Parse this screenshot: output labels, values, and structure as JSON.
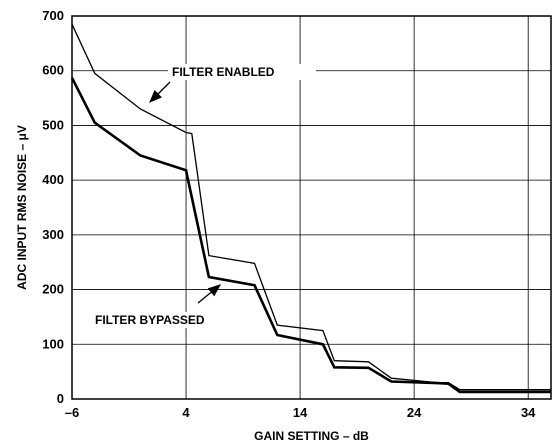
{
  "chart_data": {
    "type": "line",
    "title": "",
    "xlabel": "GAIN SETTING – dB",
    "ylabel": "ADC INPUT RMS NOISE – μV",
    "xlim": [
      -6,
      36
    ],
    "ylim": [
      0,
      700
    ],
    "x_ticks": [
      "–6",
      "4",
      "14",
      "24",
      "34"
    ],
    "x_tick_values": [
      -6,
      4,
      14,
      24,
      34
    ],
    "y_ticks": [
      "0",
      "100",
      "200",
      "300",
      "400",
      "500",
      "600",
      "700"
    ],
    "y_tick_values": [
      0,
      100,
      200,
      300,
      400,
      500,
      600,
      700
    ],
    "grid": true,
    "series": [
      {
        "name": "FILTER ENABLED",
        "stroke_width": "thin",
        "x": [
          -6,
          -4,
          0,
          4,
          4.5,
          6,
          10,
          12,
          16,
          17,
          20,
          22,
          26,
          27,
          28,
          36
        ],
        "y": [
          685,
          595,
          530,
          487,
          485,
          262,
          248,
          135,
          125,
          70,
          68,
          38,
          30,
          30,
          17,
          17
        ]
      },
      {
        "name": "FILTER BYPASSED",
        "stroke_width": "thick",
        "x": [
          -6,
          -4,
          0,
          4,
          6,
          10,
          12,
          16,
          17,
          20,
          22,
          26,
          27,
          28,
          36
        ],
        "y": [
          587,
          505,
          445,
          418,
          223,
          208,
          117,
          100,
          58,
          57,
          32,
          29,
          28,
          13,
          13
        ]
      }
    ],
    "annotations": [
      {
        "label": "FILTER ENABLED",
        "series": 0,
        "arrow_to_x": 0.5
      },
      {
        "label": "FILTER BYPASSED",
        "series": 1,
        "arrow_to_x": 6.3
      }
    ]
  }
}
